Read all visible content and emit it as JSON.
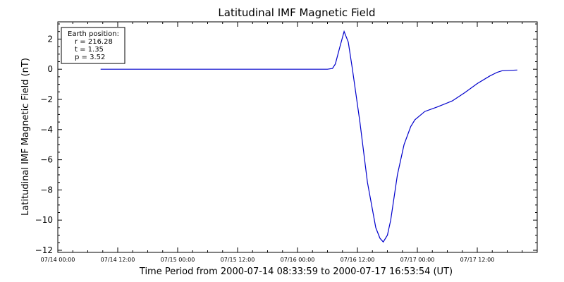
{
  "chart_data": {
    "type": "line",
    "title": "Latitudinal IMF Magnetic Field",
    "xlabel": "Time Period from 2000-07-14 08:33:59 to 2000-07-17 16:53:54 (UT)",
    "ylabel": "Latitudinal IMF Magnetic Field (nT)",
    "xlim": [
      "2000-07-14 00:00",
      "2000-07-18 00:00"
    ],
    "ylim": [
      -12,
      3
    ],
    "x_ticks": [
      {
        "t": "2000-07-14 00:00",
        "label": "07/14 00:00"
      },
      {
        "t": "2000-07-14 12:00",
        "label": "07/14 12:00"
      },
      {
        "t": "2000-07-15 00:00",
        "label": "07/15 00:00"
      },
      {
        "t": "2000-07-15 12:00",
        "label": "07/15 12:00"
      },
      {
        "t": "2000-07-16 00:00",
        "label": "07/16 00:00"
      },
      {
        "t": "2000-07-16 12:00",
        "label": "07/16 12:00"
      },
      {
        "t": "2000-07-17 00:00",
        "label": "07/17 00:00"
      },
      {
        "t": "2000-07-17 12:00",
        "label": "07/17 12:00"
      }
    ],
    "y_ticks": [
      {
        "v": 2,
        "label": "2"
      },
      {
        "v": 0,
        "label": "0"
      },
      {
        "v": -2,
        "label": "−2"
      },
      {
        "v": -4,
        "label": "−4"
      },
      {
        "v": -6,
        "label": "−6"
      },
      {
        "v": -8,
        "label": "−8"
      },
      {
        "v": -10,
        "label": "−10"
      },
      {
        "v": -12,
        "label": "−12"
      }
    ],
    "grid": false,
    "legend_box": {
      "placement": "top-left",
      "lines": [
        "Earth position:",
        "r = 216.28",
        "t = 1.35",
        "p = 3.52"
      ]
    },
    "series": [
      {
        "color": "#0000cc",
        "points": [
          [
            "2000-07-14 08:34",
            0.0
          ],
          [
            "2000-07-16 06:00",
            0.0
          ],
          [
            "2000-07-16 07:00",
            0.05
          ],
          [
            "2000-07-16 07:35",
            0.35
          ],
          [
            "2000-07-16 08:30",
            1.5
          ],
          [
            "2000-07-16 09:20",
            2.5
          ],
          [
            "2000-07-16 10:10",
            1.8
          ],
          [
            "2000-07-16 11:00",
            0.0
          ],
          [
            "2000-07-16 12:30",
            -3.5
          ],
          [
            "2000-07-16 14:00",
            -7.5
          ],
          [
            "2000-07-16 15:40",
            -10.5
          ],
          [
            "2000-07-16 16:30",
            -11.2
          ],
          [
            "2000-07-16 17:10",
            -11.45
          ],
          [
            "2000-07-16 18:00",
            -11.0
          ],
          [
            "2000-07-16 18:40",
            -10.0
          ],
          [
            "2000-07-16 20:00",
            -7.0
          ],
          [
            "2000-07-16 21:20",
            -5.0
          ],
          [
            "2000-07-16 22:40",
            -3.8
          ],
          [
            "2000-07-16 23:30",
            -3.35
          ],
          [
            "2000-07-17 01:30",
            -2.8
          ],
          [
            "2000-07-17 04:00",
            -2.5
          ],
          [
            "2000-07-17 07:00",
            -2.1
          ],
          [
            "2000-07-17 09:30",
            -1.55
          ],
          [
            "2000-07-17 12:00",
            -0.95
          ],
          [
            "2000-07-17 14:30",
            -0.45
          ],
          [
            "2000-07-17 16:00",
            -0.2
          ],
          [
            "2000-07-17 17:00",
            -0.1
          ],
          [
            "2000-07-17 20:00",
            -0.05
          ]
        ]
      }
    ]
  }
}
